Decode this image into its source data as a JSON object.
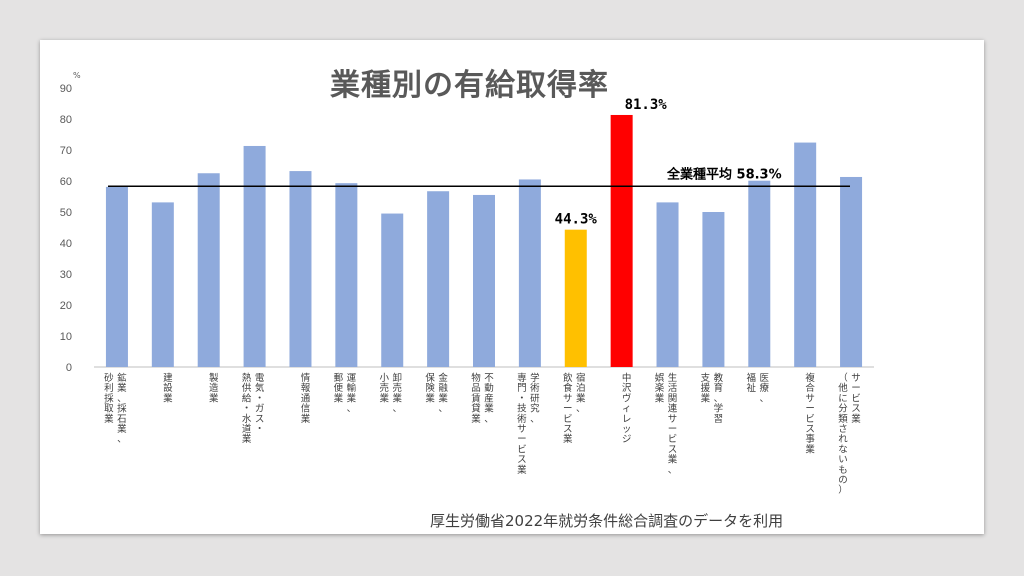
{
  "title": "業種別の有給取得率",
  "source": "厚生労働省2022年就労条件総合調査のデータを利用",
  "chart_data": {
    "type": "bar",
    "title": "業種別の有給取得率",
    "ylabel": "%",
    "ylim": [
      0,
      90
    ],
    "yticks": [
      0,
      10,
      20,
      30,
      40,
      50,
      60,
      70,
      80,
      90
    ],
    "categories": [
      "鉱業、採石業、砂利採取業",
      "建設業",
      "製造業",
      "電気・ガス・熱供給・水道業",
      "情報通信業",
      "運輸業、郵便業",
      "卸売業、小売業",
      "金融業、保険業",
      "不動産業、物品賃貸業",
      "学術研究、専門・技術サービス業",
      "宿泊業、飲食サービス業",
      "中沢ヴィレッジ",
      "生活関連サービス業、娯楽業",
      "教育、学習支援業",
      "医療、福祉",
      "複合サービス事業",
      "サービス業（他に分類されないもの）"
    ],
    "category_label_columns": [
      [
        "鉱業、採石業、",
        "砂利採取業"
      ],
      [
        "建設業"
      ],
      [
        "製造業"
      ],
      [
        "電気・ガス・",
        "熱供給・水道業"
      ],
      [
        "情報通信業"
      ],
      [
        "運輸業、",
        "郵便業"
      ],
      [
        "卸売業、",
        "小売業"
      ],
      [
        "金融業、",
        "保険業"
      ],
      [
        "不動産業、",
        "物品賃貸業"
      ],
      [
        "学術研究、",
        "専門・技術サービス業"
      ],
      [
        "宿泊業、",
        "飲食サービス業"
      ],
      [
        "中沢ヴィレッジ"
      ],
      [
        "生活関連サービス業、",
        "娯楽業"
      ],
      [
        "教育、学習",
        "支援業"
      ],
      [
        "医療、",
        "福祉"
      ],
      [
        "複合サービス事業"
      ],
      [
        "サービス業",
        "（他に分類されないもの）"
      ]
    ],
    "values": [
      58.1,
      53.1,
      62.5,
      71.3,
      63.2,
      59.3,
      49.5,
      56.7,
      55.5,
      60.5,
      44.3,
      81.3,
      53.1,
      50.0,
      60.1,
      72.4,
      61.3
    ],
    "colors": {
      "default": "#8faadc",
      "highlight_yellow": "#ffc000",
      "highlight_red": "#ff0000",
      "average_line": "#000000"
    },
    "bar_colors": [
      "default",
      "default",
      "default",
      "default",
      "default",
      "default",
      "default",
      "default",
      "default",
      "default",
      "highlight_yellow",
      "highlight_red",
      "default",
      "default",
      "default",
      "default",
      "default"
    ],
    "data_labels": [
      {
        "index": 10,
        "text": "44.3%"
      },
      {
        "index": 11,
        "text": "81.3%"
      }
    ],
    "average": {
      "value": 58.3,
      "label": "全業種平均 58.3%"
    },
    "grid": false
  }
}
